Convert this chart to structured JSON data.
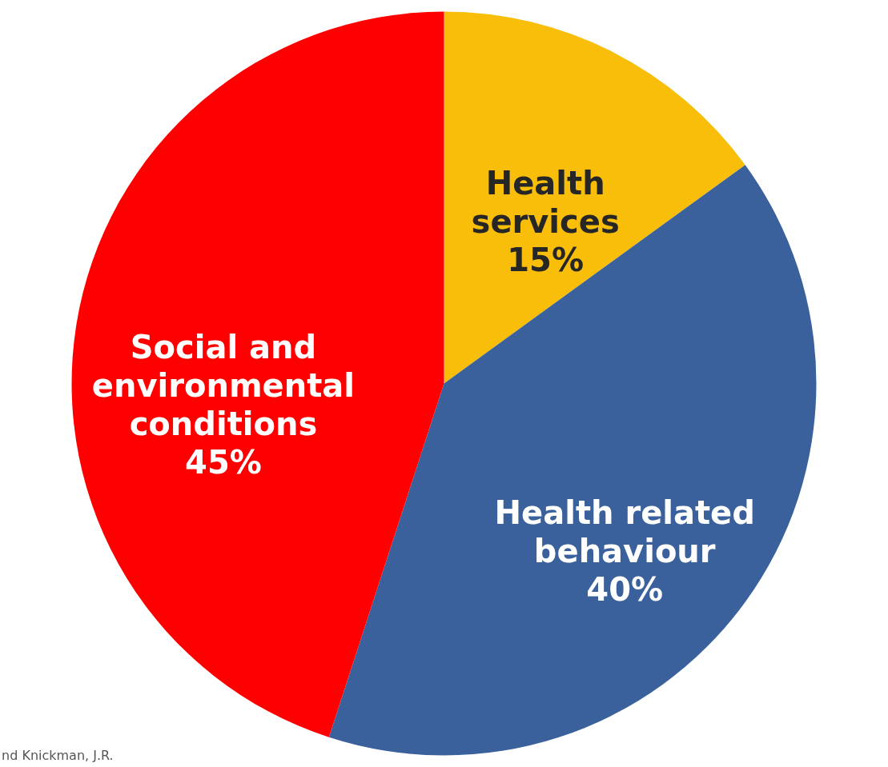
{
  "chart_data": {
    "type": "pie",
    "categories": [
      "Health services",
      "Health related behaviour",
      "Social and environmental conditions"
    ],
    "values": [
      15,
      40,
      45
    ],
    "colors": [
      "#f8be0a",
      "#3a619b",
      "#ff0000"
    ],
    "value_labels": [
      "15%",
      "40%",
      "45%"
    ],
    "annotations": [
      "nd Knickman, J.R."
    ]
  }
}
